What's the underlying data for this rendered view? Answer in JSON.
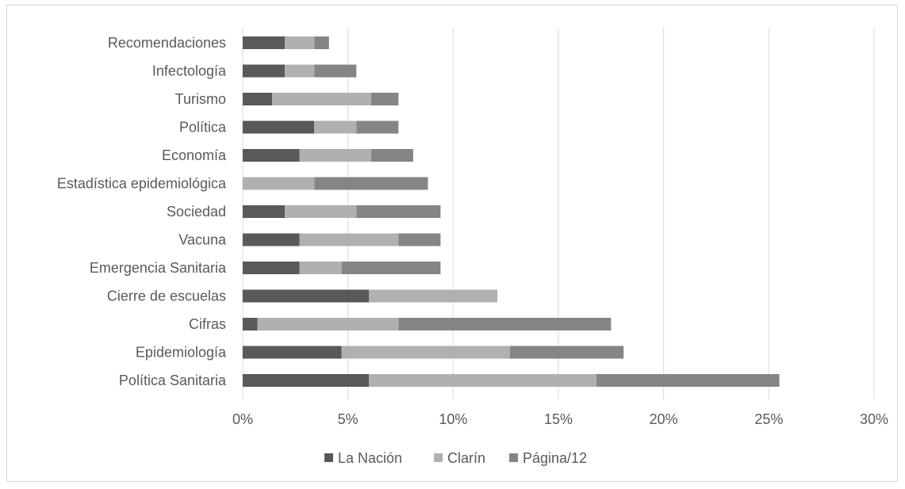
{
  "chart_data": {
    "type": "bar",
    "orientation": "horizontal",
    "stacked": true,
    "title": "",
    "xlabel": "",
    "ylabel": "",
    "categories": [
      "Política Sanitaria",
      "Epidemiología",
      "Cifras",
      "Cierre de escuelas",
      "Emergencia Sanitaria",
      "Vacuna",
      "Sociedad",
      "Estadística epidemiológica",
      "Economía",
      "Política",
      "Turismo",
      "Infectología",
      "Recomendaciones"
    ],
    "series": [
      {
        "name": "La Nación",
        "color": "#595959",
        "values": [
          6.0,
          4.7,
          0.7,
          6.0,
          2.7,
          2.7,
          2.0,
          0.0,
          2.7,
          3.4,
          1.4,
          2.0,
          2.0
        ]
      },
      {
        "name": "Clarín",
        "color": "#b0b0b0",
        "values": [
          10.8,
          8.0,
          6.7,
          6.1,
          2.0,
          4.7,
          3.4,
          3.4,
          3.4,
          2.0,
          4.7,
          1.4,
          1.4
        ]
      },
      {
        "name": "Página/12",
        "color": "#858585",
        "values": [
          8.7,
          5.4,
          10.1,
          0.0,
          4.7,
          2.0,
          4.0,
          5.4,
          2.0,
          2.0,
          1.3,
          2.0,
          0.7
        ]
      }
    ],
    "xlim": [
      0,
      30
    ],
    "x_ticks": [
      "0%",
      "5%",
      "10%",
      "15%",
      "20%",
      "25%",
      "30%"
    ],
    "grid": true,
    "legend_position": "bottom"
  }
}
